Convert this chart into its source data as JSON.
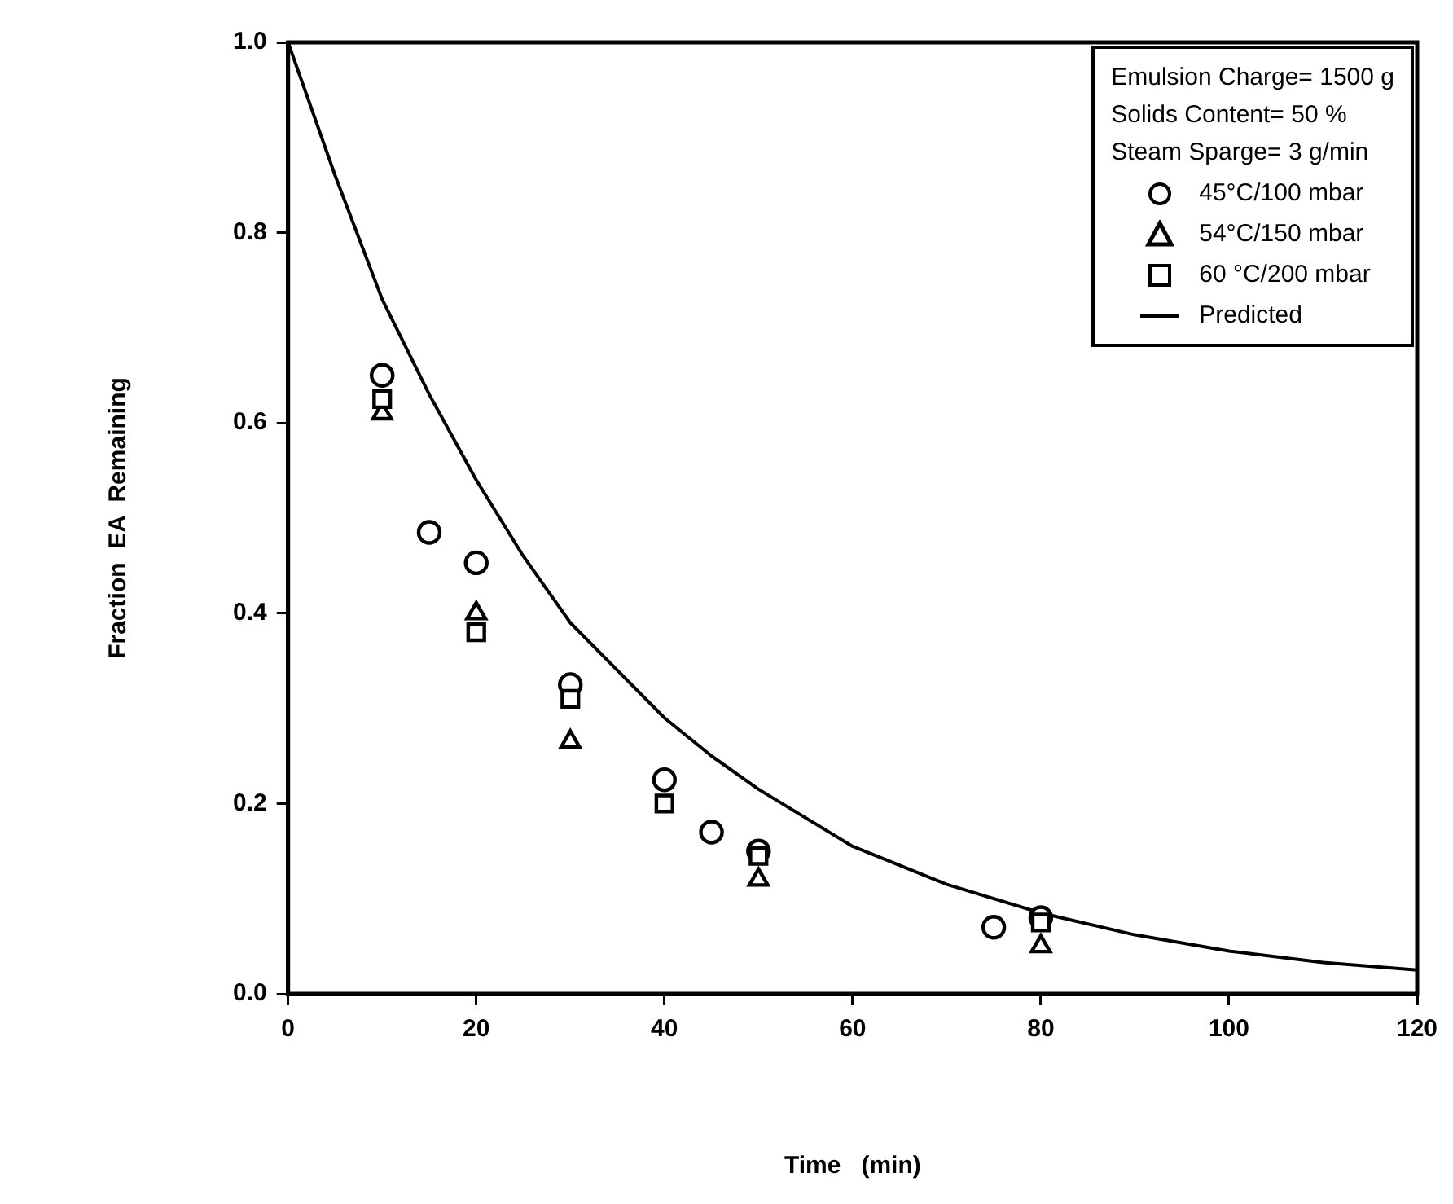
{
  "chart_data": {
    "type": "scatter",
    "xlabel": "Time   (min)",
    "ylabel": "Fraction  EA  Remaining",
    "xlim": [
      0,
      120
    ],
    "xticks": [
      0,
      20,
      40,
      60,
      80,
      100,
      120
    ],
    "ylim": [
      0,
      1.0
    ],
    "yticks": [
      {
        "value": 0,
        "label": "0.0"
      },
      {
        "value": 0.2,
        "label": "0.2"
      },
      {
        "value": 0.4,
        "label": "0.4"
      },
      {
        "value": 0.6,
        "label": "0.6"
      },
      {
        "value": 0.8,
        "label": "0.8"
      },
      {
        "value": 1.0,
        "label": "1.0"
      }
    ],
    "grid": false,
    "legend": "top right",
    "annotations": [
      "Emulsion Charge= 1500 g",
      "Solids Content= 50 %",
      "Steam Sparge= 3 g/min"
    ],
    "series": [
      {
        "name": "45°C/100 mbar",
        "marker": "circle",
        "color": "#000000",
        "x": [
          10,
          15,
          20,
          30,
          40,
          45,
          50,
          75,
          80
        ],
        "values": [
          0.65,
          0.485,
          0.453,
          0.325,
          0.225,
          0.17,
          0.15,
          0.07,
          0.08
        ]
      },
      {
        "name": "54°C/150 mbar",
        "marker": "triangle",
        "color": "#000000",
        "x": [
          10,
          20,
          30,
          50,
          80
        ],
        "values": [
          0.61,
          0.4,
          0.265,
          0.12,
          0.05
        ]
      },
      {
        "name": "60 °C/200 mbar",
        "marker": "square",
        "color": "#000000",
        "x": [
          10,
          20,
          30,
          40,
          50,
          80
        ],
        "values": [
          0.625,
          0.38,
          0.31,
          0.2,
          0.145,
          0.075
        ]
      },
      {
        "name": "Predicted",
        "type": "line",
        "marker": "none",
        "line_style": "solid",
        "color": "#000000",
        "x": [
          0,
          5,
          10,
          15,
          20,
          25,
          30,
          35,
          40,
          45,
          50,
          60,
          70,
          80,
          90,
          100,
          110,
          120
        ],
        "values": [
          1.0,
          0.86,
          0.73,
          0.63,
          0.54,
          0.46,
          0.39,
          0.34,
          0.29,
          0.25,
          0.215,
          0.155,
          0.115,
          0.085,
          0.062,
          0.045,
          0.033,
          0.025
        ]
      }
    ]
  }
}
